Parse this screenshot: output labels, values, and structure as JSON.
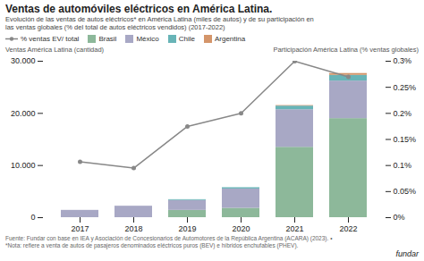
{
  "chart_data": {
    "type": "bar",
    "stacked": true,
    "title": "Ventas de automóviles eléctricos en América Latina.",
    "subtitle": [
      "Evolución de las ventas de autos eléctricos* en América Latina (miles de autos) y de su participación en",
      "las ventas globales (% del total de autos eléctricos vendidos) (2017-2022)"
    ],
    "ylabel": "Ventas América Latina (cantidad)",
    "y2label": "Participación América Latina (% ventas globales)",
    "categories": [
      "2017",
      "2018",
      "2019",
      "2020",
      "2021",
      "2022"
    ],
    "series": [
      {
        "name": "% ventas EV/ total",
        "type": "line",
        "axis": "y2",
        "color": "#888888",
        "marker": "circle",
        "values": [
          0.107,
          0.095,
          0.175,
          0.2,
          0.3,
          0.27
        ]
      },
      {
        "name": "Brasil",
        "type": "bar",
        "color": "#8db89a",
        "values": [
          0,
          0,
          1400,
          1800,
          13500,
          19000
        ]
      },
      {
        "name": "México",
        "type": "bar",
        "color": "#a8a8c5",
        "values": [
          1400,
          2200,
          1900,
          3700,
          7200,
          7200
        ]
      },
      {
        "name": "Chile",
        "type": "bar",
        "color": "#68b4b7",
        "values": [
          0,
          0,
          150,
          250,
          700,
          1100
        ]
      },
      {
        "name": "Argentina",
        "type": "bar",
        "color": "#d4956a",
        "values": [
          0,
          0,
          0,
          0,
          100,
          350
        ]
      }
    ],
    "ylim": [
      0,
      30000
    ],
    "yticks": [
      0,
      {
        "value": 10000,
        "label": "10.000"
      },
      {
        "value": 20000,
        "label": "20.000"
      },
      {
        "value": 30000,
        "label": "30.000"
      }
    ],
    "y2lim": [
      0,
      0.3
    ],
    "y2ticks": [
      {
        "value": 0,
        "label": "0%"
      },
      {
        "value": 0.05,
        "label": "0.05%"
      },
      {
        "value": 0.1,
        "label": "0.1%"
      },
      {
        "value": 0.15,
        "label": "0.15%"
      },
      {
        "value": 0.2,
        "label": "0.2%"
      },
      {
        "value": 0.25,
        "label": "0.25%"
      },
      {
        "value": 0.3,
        "label": "0.3%"
      }
    ],
    "grid": false,
    "legend": "top",
    "annotations": [
      "Fuente: Fundar con base en IEA y Asociación de Concesionarios de Automotores de la República Argentina (ACARA) (2023).  •",
      "*Nota: refiere a venta de autos de pasajeros denominados eléctricos puros (BEV) e híbridos enchufables (PHEV).",
      "fundar"
    ]
  }
}
